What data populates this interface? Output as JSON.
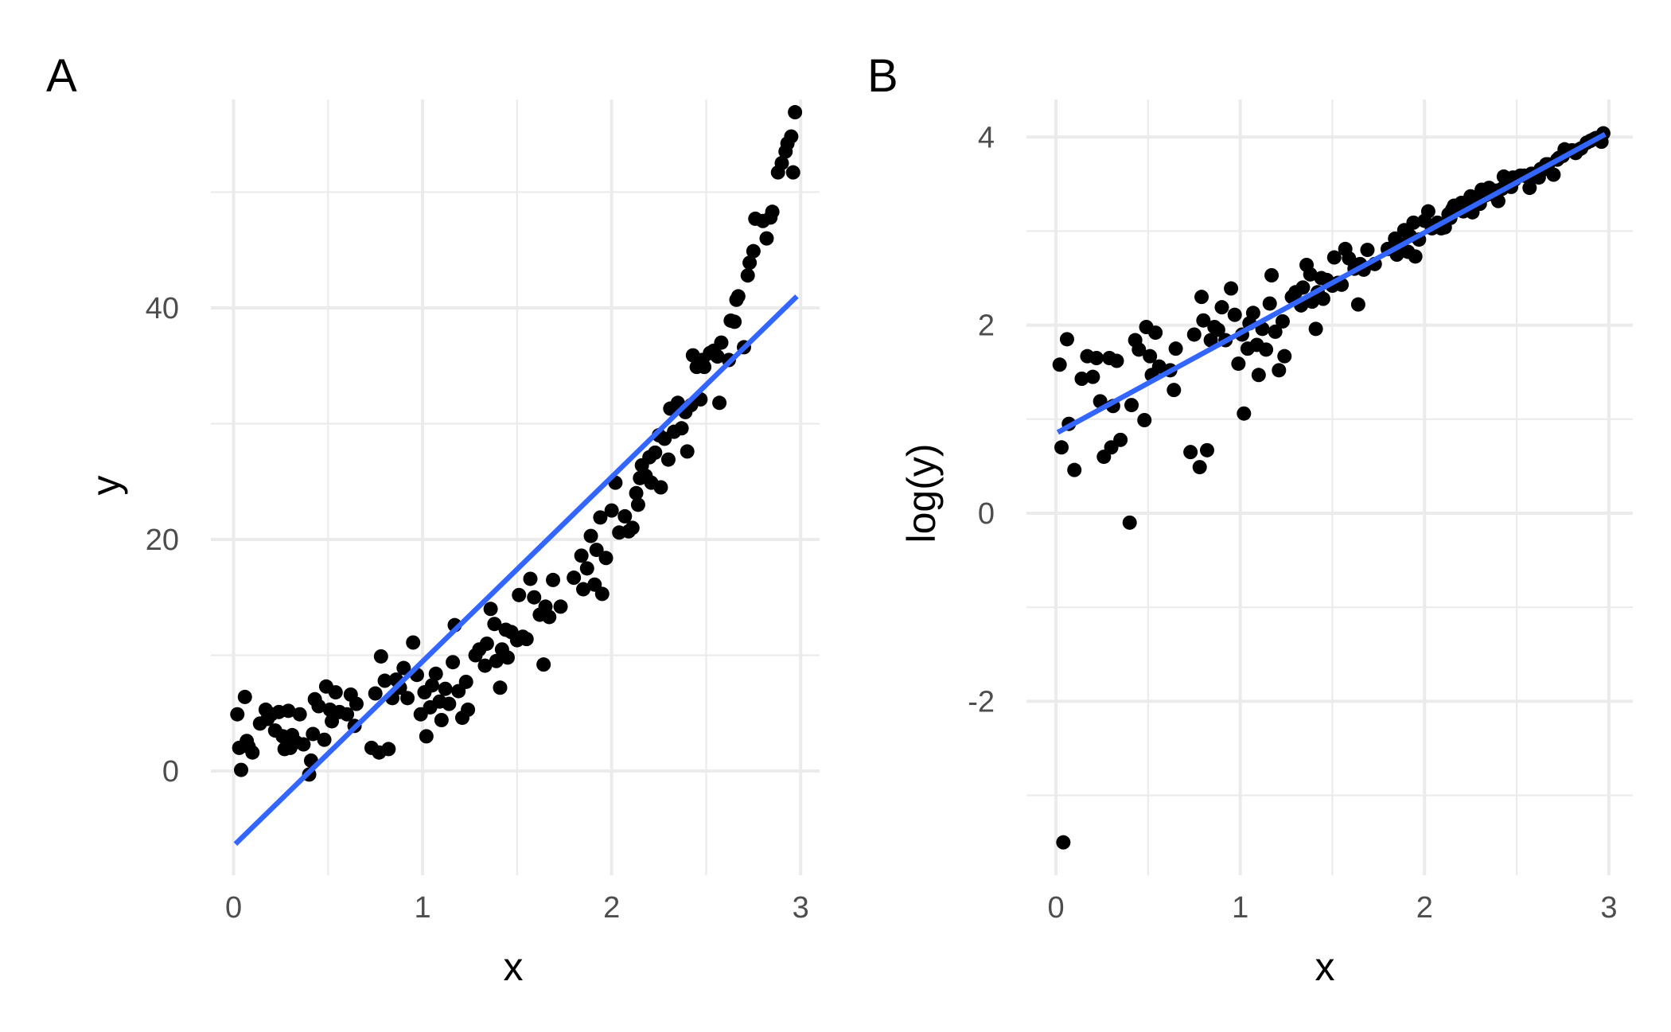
{
  "colors": {
    "point": "#000000",
    "fit_line": "#3366ff",
    "grid": "#ebebeb",
    "tick_text": "#4d4d4d",
    "background": "#ffffff"
  },
  "chart_data": [
    {
      "type": "scatter",
      "tag": "A",
      "xlabel": "x",
      "ylabel": "y",
      "xlim": [
        -0.12,
        3.1
      ],
      "ylim": [
        -9,
        58
      ],
      "x_ticks": [
        0,
        1,
        2,
        3
      ],
      "y_ticks": [
        0,
        20,
        40
      ],
      "x_tick_labels": [
        "0",
        "1",
        "2",
        "3"
      ],
      "y_tick_labels": [
        "0",
        "20",
        "40"
      ],
      "grid": true,
      "fit_line": {
        "x": [
          0.01,
          2.98
        ],
        "y": [
          -6.3,
          41.0
        ]
      },
      "points": [
        [
          0.02,
          4.9
        ],
        [
          0.03,
          2.0
        ],
        [
          0.04,
          0.1
        ],
        [
          0.06,
          6.4
        ],
        [
          0.07,
          2.6
        ],
        [
          0.08,
          2.1
        ],
        [
          0.1,
          1.6
        ],
        [
          0.14,
          4.1
        ],
        [
          0.17,
          5.3
        ],
        [
          0.18,
          4.5
        ],
        [
          0.2,
          4.9
        ],
        [
          0.22,
          3.5
        ],
        [
          0.24,
          5.1
        ],
        [
          0.26,
          3.0
        ],
        [
          0.27,
          1.9
        ],
        [
          0.29,
          5.2
        ],
        [
          0.3,
          2.0
        ],
        [
          0.31,
          3.1
        ],
        [
          0.33,
          2.5
        ],
        [
          0.35,
          4.9
        ],
        [
          0.37,
          2.3
        ],
        [
          0.4,
          -0.3
        ],
        [
          0.41,
          0.9
        ],
        [
          0.42,
          3.2
        ],
        [
          0.43,
          6.2
        ],
        [
          0.45,
          5.6
        ],
        [
          0.48,
          2.7
        ],
        [
          0.49,
          7.3
        ],
        [
          0.51,
          5.3
        ],
        [
          0.52,
          4.3
        ],
        [
          0.54,
          6.8
        ],
        [
          0.56,
          5.1
        ],
        [
          0.6,
          4.9
        ],
        [
          0.62,
          6.6
        ],
        [
          0.64,
          3.9
        ],
        [
          0.65,
          5.8
        ],
        [
          0.73,
          2.0
        ],
        [
          0.75,
          6.7
        ],
        [
          0.77,
          1.6
        ],
        [
          0.78,
          9.9
        ],
        [
          0.8,
          7.8
        ],
        [
          0.82,
          1.9
        ],
        [
          0.84,
          6.3
        ],
        [
          0.86,
          7.9
        ],
        [
          0.88,
          7.2
        ],
        [
          0.9,
          8.9
        ],
        [
          0.92,
          6.3
        ],
        [
          0.95,
          11.1
        ],
        [
          0.97,
          8.3
        ],
        [
          0.99,
          4.9
        ],
        [
          1.01,
          6.8
        ],
        [
          1.02,
          3.0
        ],
        [
          1.04,
          5.5
        ],
        [
          1.05,
          7.4
        ],
        [
          1.07,
          8.4
        ],
        [
          1.09,
          6.0
        ],
        [
          1.1,
          4.4
        ],
        [
          1.12,
          7.1
        ],
        [
          1.14,
          5.8
        ],
        [
          1.16,
          9.4
        ],
        [
          1.17,
          12.6
        ],
        [
          1.19,
          6.9
        ],
        [
          1.21,
          4.6
        ],
        [
          1.23,
          7.7
        ],
        [
          1.24,
          5.3
        ],
        [
          1.28,
          10.0
        ],
        [
          1.3,
          10.5
        ],
        [
          1.33,
          9.1
        ],
        [
          1.34,
          11.0
        ],
        [
          1.36,
          14.0
        ],
        [
          1.38,
          12.7
        ],
        [
          1.39,
          9.5
        ],
        [
          1.41,
          7.2
        ],
        [
          1.42,
          10.5
        ],
        [
          1.44,
          12.2
        ],
        [
          1.45,
          9.8
        ],
        [
          1.47,
          12.0
        ],
        [
          1.5,
          11.3
        ],
        [
          1.51,
          15.2
        ],
        [
          1.53,
          11.6
        ],
        [
          1.55,
          11.4
        ],
        [
          1.57,
          16.6
        ],
        [
          1.59,
          15.0
        ],
        [
          1.62,
          13.5
        ],
        [
          1.64,
          9.2
        ],
        [
          1.65,
          14.2
        ],
        [
          1.67,
          13.3
        ],
        [
          1.69,
          16.5
        ],
        [
          1.73,
          14.2
        ],
        [
          1.8,
          16.7
        ],
        [
          1.84,
          18.6
        ],
        [
          1.85,
          15.7
        ],
        [
          1.87,
          17.5
        ],
        [
          1.89,
          20.3
        ],
        [
          1.91,
          16.1
        ],
        [
          1.92,
          19.1
        ],
        [
          1.94,
          21.9
        ],
        [
          1.95,
          15.3
        ],
        [
          1.97,
          18.4
        ],
        [
          2.0,
          22.5
        ],
        [
          2.02,
          24.9
        ],
        [
          2.04,
          20.6
        ],
        [
          2.07,
          22.0
        ],
        [
          2.09,
          20.7
        ],
        [
          2.11,
          21.0
        ],
        [
          2.13,
          24.0
        ],
        [
          2.14,
          23.0
        ],
        [
          2.15,
          25.3
        ],
        [
          2.16,
          26.4
        ],
        [
          2.18,
          25.5
        ],
        [
          2.2,
          27.1
        ],
        [
          2.21,
          24.9
        ],
        [
          2.23,
          27.5
        ],
        [
          2.25,
          29.0
        ],
        [
          2.26,
          24.5
        ],
        [
          2.28,
          28.7
        ],
        [
          2.3,
          26.9
        ],
        [
          2.31,
          31.3
        ],
        [
          2.33,
          29.3
        ],
        [
          2.35,
          31.8
        ],
        [
          2.37,
          29.6
        ],
        [
          2.39,
          31.0
        ],
        [
          2.4,
          27.6
        ],
        [
          2.42,
          31.6
        ],
        [
          2.43,
          35.9
        ],
        [
          2.45,
          34.9
        ],
        [
          2.47,
          32.1
        ],
        [
          2.48,
          35.5
        ],
        [
          2.49,
          34.9
        ],
        [
          2.52,
          36.1
        ],
        [
          2.54,
          36.3
        ],
        [
          2.56,
          35.8
        ],
        [
          2.57,
          31.8
        ],
        [
          2.58,
          37.0
        ],
        [
          2.62,
          35.5
        ],
        [
          2.63,
          38.9
        ],
        [
          2.65,
          38.8
        ],
        [
          2.66,
          40.7
        ],
        [
          2.67,
          41.0
        ],
        [
          2.7,
          36.6
        ],
        [
          2.72,
          42.8
        ],
        [
          2.73,
          43.9
        ],
        [
          2.75,
          44.9
        ],
        [
          2.76,
          47.7
        ],
        [
          2.8,
          47.5
        ],
        [
          2.82,
          46.0
        ],
        [
          2.84,
          47.8
        ],
        [
          2.85,
          48.3
        ],
        [
          2.88,
          51.7
        ],
        [
          2.9,
          52.5
        ],
        [
          2.92,
          53.5
        ],
        [
          2.93,
          54.2
        ],
        [
          2.95,
          54.8
        ],
        [
          2.96,
          51.7
        ],
        [
          2.97,
          56.9
        ]
      ]
    },
    {
      "type": "scatter",
      "tag": "B",
      "xlabel": "x",
      "ylabel": "log(y)",
      "xlim": [
        -0.16,
        3.13
      ],
      "ylim": [
        -3.85,
        4.4
      ],
      "x_ticks": [
        0,
        1,
        2,
        3
      ],
      "y_ticks": [
        -2,
        0,
        2,
        4
      ],
      "x_tick_labels": [
        "0",
        "1",
        "2",
        "3"
      ],
      "y_tick_labels": [
        "-2",
        "0",
        "2",
        "4"
      ],
      "grid": true,
      "fit_line": {
        "x": [
          0.01,
          2.98
        ],
        "y": [
          0.86,
          4.03
        ]
      },
      "points": [
        [
          0.02,
          1.58
        ],
        [
          0.03,
          0.7
        ],
        [
          0.04,
          -3.5
        ],
        [
          0.06,
          1.85
        ],
        [
          0.07,
          0.95
        ],
        [
          0.1,
          0.46
        ],
        [
          0.14,
          1.43
        ],
        [
          0.17,
          1.67
        ],
        [
          0.2,
          1.45
        ],
        [
          0.22,
          1.65
        ],
        [
          0.24,
          1.19
        ],
        [
          0.26,
          0.6
        ],
        [
          0.29,
          1.65
        ],
        [
          0.3,
          0.7
        ],
        [
          0.31,
          1.14
        ],
        [
          0.33,
          1.62
        ],
        [
          0.35,
          0.78
        ],
        [
          0.4,
          -0.1
        ],
        [
          0.41,
          1.15
        ],
        [
          0.43,
          1.84
        ],
        [
          0.45,
          1.74
        ],
        [
          0.48,
          0.99
        ],
        [
          0.49,
          1.98
        ],
        [
          0.51,
          1.67
        ],
        [
          0.52,
          1.47
        ],
        [
          0.54,
          1.92
        ],
        [
          0.56,
          1.56
        ],
        [
          0.62,
          1.52
        ],
        [
          0.64,
          1.31
        ],
        [
          0.65,
          1.75
        ],
        [
          0.73,
          0.65
        ],
        [
          0.75,
          1.9
        ],
        [
          0.78,
          0.49
        ],
        [
          0.79,
          2.3
        ],
        [
          0.8,
          2.05
        ],
        [
          0.82,
          0.67
        ],
        [
          0.84,
          1.84
        ],
        [
          0.86,
          1.98
        ],
        [
          0.88,
          1.95
        ],
        [
          0.9,
          2.19
        ],
        [
          0.92,
          1.84
        ],
        [
          0.95,
          2.39
        ],
        [
          0.97,
          2.11
        ],
        [
          0.99,
          1.59
        ],
        [
          1.01,
          1.9
        ],
        [
          1.02,
          1.06
        ],
        [
          1.04,
          1.75
        ],
        [
          1.05,
          2.02
        ],
        [
          1.07,
          2.13
        ],
        [
          1.09,
          1.79
        ],
        [
          1.1,
          1.47
        ],
        [
          1.12,
          1.96
        ],
        [
          1.14,
          1.74
        ],
        [
          1.16,
          2.23
        ],
        [
          1.17,
          2.53
        ],
        [
          1.19,
          1.93
        ],
        [
          1.21,
          1.52
        ],
        [
          1.23,
          2.04
        ],
        [
          1.24,
          1.67
        ],
        [
          1.28,
          2.3
        ],
        [
          1.3,
          2.35
        ],
        [
          1.33,
          2.21
        ],
        [
          1.34,
          2.4
        ],
        [
          1.36,
          2.64
        ],
        [
          1.38,
          2.54
        ],
        [
          1.39,
          2.25
        ],
        [
          1.41,
          1.96
        ],
        [
          1.42,
          2.35
        ],
        [
          1.44,
          2.5
        ],
        [
          1.45,
          2.28
        ],
        [
          1.47,
          2.48
        ],
        [
          1.5,
          2.42
        ],
        [
          1.51,
          2.72
        ],
        [
          1.53,
          2.45
        ],
        [
          1.55,
          2.43
        ],
        [
          1.57,
          2.81
        ],
        [
          1.59,
          2.71
        ],
        [
          1.62,
          2.6
        ],
        [
          1.64,
          2.22
        ],
        [
          1.65,
          2.65
        ],
        [
          1.67,
          2.59
        ],
        [
          1.69,
          2.8
        ],
        [
          1.73,
          2.65
        ],
        [
          1.8,
          2.81
        ],
        [
          1.84,
          2.92
        ],
        [
          1.85,
          2.75
        ],
        [
          1.87,
          2.86
        ],
        [
          1.89,
          3.01
        ],
        [
          1.91,
          2.78
        ],
        [
          1.92,
          2.95
        ],
        [
          1.94,
          3.09
        ],
        [
          1.95,
          2.73
        ],
        [
          1.97,
          2.91
        ],
        [
          2.0,
          3.11
        ],
        [
          2.02,
          3.21
        ],
        [
          2.04,
          3.03
        ],
        [
          2.07,
          3.09
        ],
        [
          2.09,
          3.03
        ],
        [
          2.11,
          3.04
        ],
        [
          2.13,
          3.18
        ],
        [
          2.14,
          3.14
        ],
        [
          2.15,
          3.23
        ],
        [
          2.16,
          3.27
        ],
        [
          2.18,
          3.24
        ],
        [
          2.2,
          3.3
        ],
        [
          2.21,
          3.21
        ],
        [
          2.23,
          3.31
        ],
        [
          2.25,
          3.37
        ],
        [
          2.26,
          3.2
        ],
        [
          2.28,
          3.36
        ],
        [
          2.3,
          3.29
        ],
        [
          2.31,
          3.44
        ],
        [
          2.33,
          3.38
        ],
        [
          2.35,
          3.46
        ],
        [
          2.37,
          3.39
        ],
        [
          2.39,
          3.43
        ],
        [
          2.4,
          3.32
        ],
        [
          2.42,
          3.45
        ],
        [
          2.43,
          3.58
        ],
        [
          2.45,
          3.55
        ],
        [
          2.47,
          3.47
        ],
        [
          2.48,
          3.57
        ],
        [
          2.49,
          3.55
        ],
        [
          2.52,
          3.59
        ],
        [
          2.54,
          3.59
        ],
        [
          2.56,
          3.58
        ],
        [
          2.57,
          3.46
        ],
        [
          2.58,
          3.61
        ],
        [
          2.62,
          3.57
        ],
        [
          2.63,
          3.66
        ],
        [
          2.65,
          3.66
        ],
        [
          2.66,
          3.71
        ],
        [
          2.67,
          3.71
        ],
        [
          2.7,
          3.6
        ],
        [
          2.72,
          3.76
        ],
        [
          2.73,
          3.78
        ],
        [
          2.75,
          3.8
        ],
        [
          2.76,
          3.87
        ],
        [
          2.8,
          3.86
        ],
        [
          2.82,
          3.83
        ],
        [
          2.84,
          3.87
        ],
        [
          2.85,
          3.88
        ],
        [
          2.88,
          3.94
        ],
        [
          2.9,
          3.96
        ],
        [
          2.92,
          3.98
        ],
        [
          2.93,
          3.99
        ],
        [
          2.95,
          4.0
        ],
        [
          2.96,
          3.95
        ],
        [
          2.97,
          4.04
        ]
      ]
    }
  ]
}
